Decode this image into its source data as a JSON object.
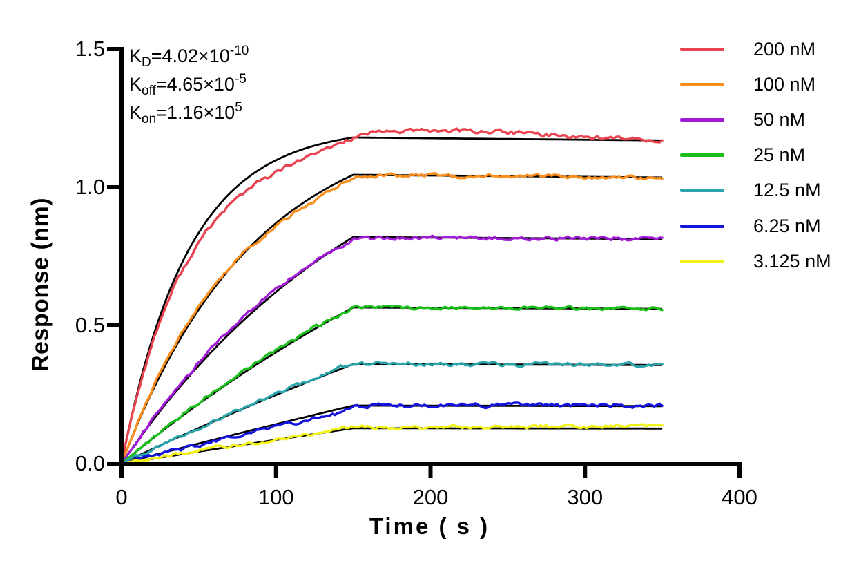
{
  "chart_data": {
    "type": "line",
    "title": "",
    "xlabel": "Time ( s )",
    "ylabel": "Response (nm)",
    "xlim": [
      0,
      400
    ],
    "ylim": [
      0,
      1.5
    ],
    "grid": false,
    "legend_position": "right-outside",
    "x_ticks": [
      {
        "v": 0,
        "label": "0"
      },
      {
        "v": 100,
        "label": "100"
      },
      {
        "v": 200,
        "label": "200"
      },
      {
        "v": 300,
        "label": "300"
      },
      {
        "v": 400,
        "label": "400"
      }
    ],
    "y_ticks": [
      {
        "v": 0.0,
        "label": "0.0"
      },
      {
        "v": 0.5,
        "label": "0.5"
      },
      {
        "v": 1.0,
        "label": "1.0"
      },
      {
        "v": 1.5,
        "label": "1.5"
      }
    ],
    "kinetics": {
      "KD": "4.02×10-10",
      "Koff": "4.65×10-5",
      "Kon": "1.16×105"
    },
    "association_phase_s": [
      0,
      150
    ],
    "dissociation_phase_s": [
      150,
      350
    ],
    "koff_per_s": 4.65e-05,
    "fit_color": "#000000",
    "series": [
      {
        "name": "200 nM",
        "concentration_nM": 200,
        "color": "#E8434E",
        "plateau_nm": 1.18,
        "kobs_per_s": 0.0232,
        "noise_nm": 0.0055,
        "deviation": [
          [
            0,
            0
          ],
          [
            25,
            -0.02
          ],
          [
            50,
            -0.038
          ],
          [
            75,
            -0.042
          ],
          [
            100,
            -0.046
          ],
          [
            125,
            -0.032
          ],
          [
            145,
            -0.008
          ],
          [
            158,
            0.012
          ],
          [
            175,
            0.024
          ],
          [
            210,
            0.028
          ],
          [
            245,
            0.026
          ],
          [
            285,
            0.014
          ],
          [
            320,
            0.006
          ],
          [
            350,
            0.002
          ]
        ]
      },
      {
        "name": "100 nM",
        "concentration_nM": 100,
        "color": "#F98E1C",
        "plateau_nm": 1.045,
        "kobs_per_s": 0.0116,
        "noise_nm": 0.0045,
        "deviation": [
          [
            0,
            0
          ],
          [
            15,
            0.008
          ],
          [
            40,
            0.014
          ],
          [
            70,
            0.004
          ],
          [
            95,
            -0.008
          ],
          [
            120,
            -0.016
          ],
          [
            140,
            -0.014
          ],
          [
            152,
            -0.008
          ],
          [
            168,
            0
          ],
          [
            350,
            0
          ]
        ]
      },
      {
        "name": "50 nM",
        "concentration_nM": 50,
        "color": "#A11BD6",
        "plateau_nm": 0.82,
        "kobs_per_s": 0.0058,
        "noise_nm": 0.005,
        "deviation": [
          [
            0,
            0
          ],
          [
            30,
            0.006
          ],
          [
            70,
            0.01
          ],
          [
            110,
            0.006
          ],
          [
            140,
            -0.004
          ],
          [
            150,
            -0.01
          ],
          [
            162,
            -0.004
          ],
          [
            185,
            0
          ],
          [
            350,
            0
          ]
        ]
      },
      {
        "name": "25 nM",
        "concentration_nM": 25,
        "color": "#1CBE1C",
        "plateau_nm": 0.565,
        "kobs_per_s": 0.0029,
        "noise_nm": 0.0045,
        "deviation": [
          [
            0,
            0
          ],
          [
            50,
            0.005
          ],
          [
            100,
            0.007
          ],
          [
            140,
            0.002
          ],
          [
            150,
            0
          ],
          [
            350,
            0
          ]
        ]
      },
      {
        "name": "12.5 nM",
        "concentration_nM": 12.5,
        "color": "#2BA3AB",
        "plateau_nm": 0.36,
        "kobs_per_s": 0.00145,
        "noise_nm": 0.0045,
        "deviation": [
          [
            0,
            0
          ],
          [
            40,
            -0.003
          ],
          [
            90,
            0.004
          ],
          [
            140,
            0.006
          ],
          [
            158,
            0.001
          ],
          [
            350,
            0
          ]
        ]
      },
      {
        "name": "6.25 nM",
        "concentration_nM": 6.25,
        "color": "#1414DD",
        "plateau_nm": 0.21,
        "kobs_per_s": 0.000725,
        "noise_nm": 0.005,
        "deviation": [
          [
            0,
            0
          ],
          [
            60,
            -0.005
          ],
          [
            110,
            -0.011
          ],
          [
            140,
            -0.013
          ],
          [
            152,
            -0.005
          ],
          [
            168,
            0.002
          ],
          [
            350,
            0.002
          ]
        ]
      },
      {
        "name": "3.125 nM",
        "concentration_nM": 3.125,
        "color": "#F2F218",
        "plateau_nm": 0.128,
        "kobs_per_s": 0.00036,
        "noise_nm": 0.0045,
        "deviation": [
          [
            0,
            0
          ],
          [
            50,
            0.003
          ],
          [
            100,
            0.001
          ],
          [
            140,
            0.005
          ],
          [
            160,
            0.003
          ],
          [
            250,
            0.005
          ],
          [
            350,
            0.01
          ]
        ]
      }
    ]
  },
  "annotations": [
    {
      "k": "K",
      "sub": "D",
      "body": "=4.02×10",
      "sup": "-10"
    },
    {
      "k": "K",
      "sub": "off",
      "body": "=4.65×10",
      "sup": "-5"
    },
    {
      "k": "K",
      "sub": "on",
      "body": "=1.16×10",
      "sup": "5"
    }
  ],
  "legend": {
    "items": [
      {
        "label": "200 nM",
        "color": "#E8434E"
      },
      {
        "label": "100 nM",
        "color": "#F98E1C"
      },
      {
        "label": "50 nM",
        "color": "#A11BD6"
      },
      {
        "label": "25 nM",
        "color": "#1CBE1C"
      },
      {
        "label": "12.5 nM",
        "color": "#2BA3AB"
      },
      {
        "label": "6.25 nM",
        "color": "#1414DD"
      },
      {
        "label": "3.125 nM",
        "color": "#F2F218"
      }
    ]
  }
}
